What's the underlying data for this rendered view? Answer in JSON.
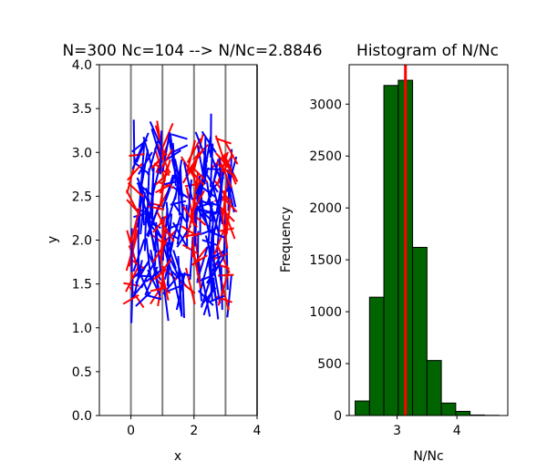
{
  "chart_data": [
    {
      "type": "scatter",
      "subtype": "needle-drop line segments (Buffon's needle)",
      "title": "N=300 Nc=104 --> N/Nc=2.8846",
      "xlabel": "x",
      "ylabel": "y",
      "xlim": [
        -1,
        4
      ],
      "ylim": [
        0,
        4
      ],
      "xticks": [
        "0",
        "2",
        "4"
      ],
      "yticks": [
        "0.0",
        "0.5",
        "1.0",
        "1.5",
        "2.0",
        "2.5",
        "3.0",
        "3.5",
        "4.0"
      ],
      "grid": false,
      "vertical_lines": {
        "x": [
          0,
          1,
          2,
          3,
          4
        ],
        "color": "#808080"
      },
      "needles": {
        "N": 300,
        "Nc": 104,
        "length": 0.5,
        "x_range": [
          0,
          3.2
        ],
        "y_range": [
          1.05,
          3.45
        ]
      },
      "colors": {
        "crossing": "#ff0000",
        "non_crossing": "#0000ff"
      }
    },
    {
      "type": "bar",
      "subtype": "histogram",
      "title": "Histogram of N/Nc",
      "xlabel": "N/Nc",
      "ylabel": "Frequency",
      "xlim": [
        2.2,
        4.85
      ],
      "ylim": [
        0,
        3380
      ],
      "xticks": [
        "3",
        "4"
      ],
      "yticks": [
        "0",
        "500",
        "1000",
        "1500",
        "2000",
        "2500",
        "3000"
      ],
      "bin_edges": [
        2.3,
        2.54,
        2.78,
        3.02,
        3.26,
        3.5,
        3.74,
        3.98,
        4.22,
        4.46,
        4.7
      ],
      "values": [
        140,
        1140,
        3180,
        3230,
        1620,
        530,
        120,
        40,
        5,
        2
      ],
      "bar_color": "#006400",
      "edge_color": "#000000",
      "mean_line": {
        "x": 3.14,
        "color": "#ff0000"
      }
    }
  ]
}
